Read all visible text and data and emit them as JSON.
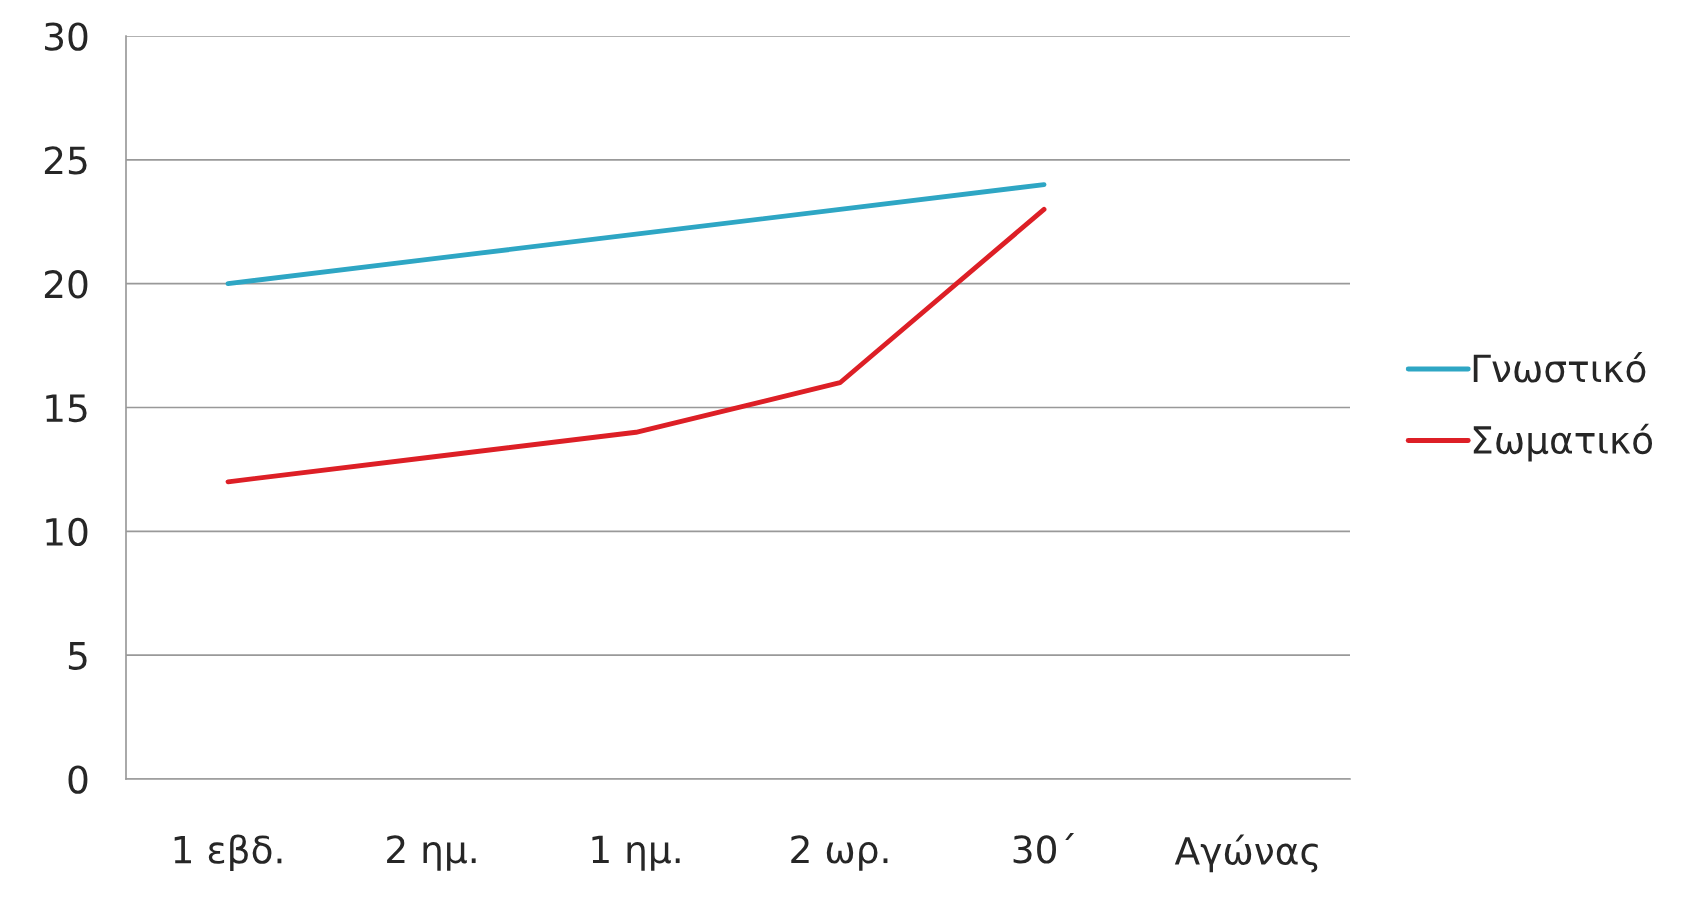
{
  "chart_data": {
    "type": "line",
    "categories": [
      "1 εβδ.",
      "2 ημ.",
      "1 ημ.",
      "2 ωρ.",
      "30΄",
      "Αγώνας"
    ],
    "series": [
      {
        "name": "Γνωστικό",
        "color": "#2ea6c4",
        "values": [
          20,
          21,
          22,
          23,
          24,
          null
        ]
      },
      {
        "name": "Σωματικό",
        "color": "#dd1f26",
        "values": [
          12,
          13,
          14,
          16,
          23,
          null
        ]
      }
    ],
    "ylim": [
      0,
      30
    ],
    "yticks": [
      0,
      5,
      10,
      15,
      20,
      25,
      30
    ],
    "grid": "y",
    "legend": "right",
    "marker": "none",
    "line_style": "solid"
  }
}
